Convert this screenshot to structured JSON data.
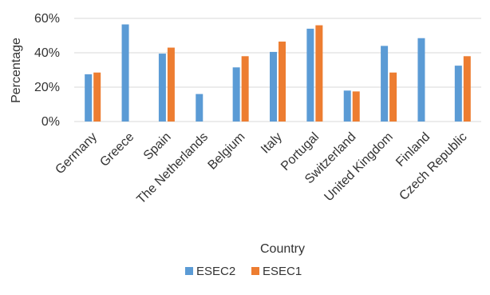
{
  "chart_data": {
    "type": "bar",
    "title": "",
    "xlabel": "Country",
    "ylabel": "Percentage",
    "ylim": [
      0,
      0.6
    ],
    "yticks": [
      "0%",
      "20%",
      "40%",
      "60%"
    ],
    "ytick_values": [
      0,
      0.2,
      0.4,
      0.6
    ],
    "grid": true,
    "legend_position": "bottom",
    "categories": [
      "Germany",
      "Greece",
      "Spain",
      "The Netherlands",
      "Belgium",
      "Italy",
      "Portugal",
      "Switzerland",
      "United Kingdom",
      "Finland",
      "Czech Republic"
    ],
    "series": [
      {
        "name": "ESEC2",
        "color": "#5B9BD5",
        "values": [
          0.275,
          0.565,
          0.395,
          0.16,
          0.315,
          0.405,
          0.54,
          0.18,
          0.44,
          0.485,
          0.325
        ]
      },
      {
        "name": "ESEC1",
        "color": "#ED7D31",
        "values": [
          0.285,
          null,
          0.43,
          null,
          0.38,
          0.465,
          0.56,
          0.175,
          0.285,
          null,
          0.38
        ]
      }
    ]
  }
}
